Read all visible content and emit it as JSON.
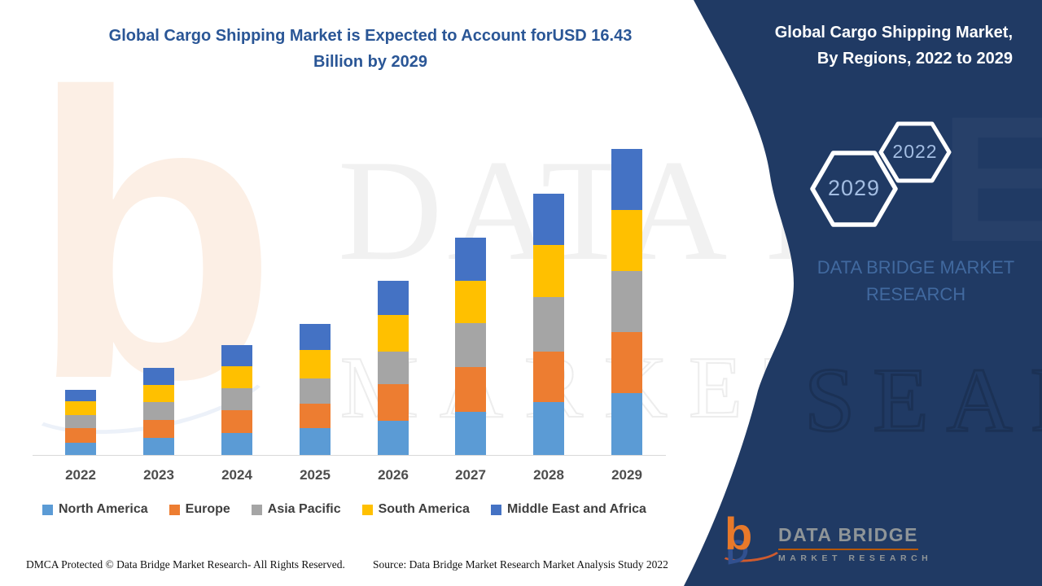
{
  "chart_data": {
    "type": "bar",
    "stacked": true,
    "title": "Global Cargo Shipping Market is Expected to Account forUSD 16.43 Billion by 2029",
    "title_line1": "Global Cargo Shipping Market is Expected to Account forUSD 16.43",
    "title_line2": "Billion by 2029",
    "categories": [
      "2022",
      "2023",
      "2024",
      "2025",
      "2026",
      "2027",
      "2028",
      "2029"
    ],
    "series": [
      {
        "name": "North America",
        "color": "#5B9BD5",
        "values": [
          0.66,
          0.92,
          1.18,
          1.44,
          1.84,
          2.32,
          2.84,
          3.32
        ]
      },
      {
        "name": "Europe",
        "color": "#ED7D31",
        "values": [
          0.79,
          0.96,
          1.22,
          1.31,
          1.97,
          2.4,
          2.71,
          3.28
        ]
      },
      {
        "name": "Asia Pacific",
        "color": "#A5A5A5",
        "values": [
          0.7,
          0.96,
          1.18,
          1.35,
          1.75,
          2.36,
          2.93,
          3.28
        ]
      },
      {
        "name": "South America",
        "color": "#FFC000",
        "values": [
          0.74,
          0.92,
          1.18,
          1.53,
          1.97,
          2.27,
          2.8,
          3.28
        ]
      },
      {
        "name": "Middle East and Africa",
        "color": "#4472C4",
        "values": [
          0.61,
          0.92,
          1.14,
          1.4,
          1.84,
          2.32,
          2.75,
          3.27
        ]
      }
    ],
    "totals": [
      3.5,
      4.68,
      5.9,
      7.03,
      9.37,
      11.67,
      14.03,
      16.43
    ],
    "unit": "USD Billion",
    "values_estimated_from_bar_heights": true,
    "ylim": [
      0,
      16.43
    ],
    "yaxis_labels_visible": false,
    "grid": false,
    "legend_position": "bottom"
  },
  "side_panel": {
    "bg_color": "#203a64",
    "heading_line1": "Global Cargo Shipping Market,",
    "heading_line2": "By Regions, 2022 to 2029",
    "hex_small_label": "2022",
    "hex_large_label": "2029",
    "brand_line1": "DATA BRIDGE MARKET",
    "brand_line2": "RESEARCH",
    "logo_name": "DATA BRIDGE",
    "logo_sub": "MARKET RESEARCH"
  },
  "footer": {
    "dmca": "DMCA Protected © Data Bridge Market Research- All Rights Reserved.",
    "source": "Source: Data Bridge Market Research Market Analysis Study 2022"
  },
  "watermarks": {
    "letter_b": "b",
    "word1": "DATA BRIDGE",
    "word2": "MARKET RESEARCH",
    "panel_letter": "E",
    "panel_word": "SEARCH"
  },
  "layout_colors": {
    "title_text": "#2a5696",
    "axis_line": "#d9d9d9",
    "x_label_text": "#4d4d4d",
    "legend_text": "#3f3f3f",
    "panel_text": "#ffffff",
    "hex_label_text": "#a3bde2",
    "panel_brand_text": "#41699f"
  }
}
